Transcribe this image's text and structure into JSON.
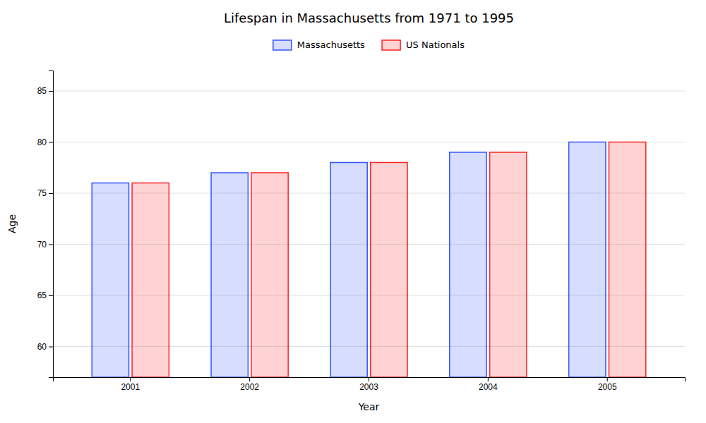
{
  "chart_data": {
    "type": "bar",
    "title": "Lifespan in Massachusetts from 1971 to 1995",
    "xlabel": "Year",
    "ylabel": "Age",
    "categories": [
      "2001",
      "2002",
      "2003",
      "2004",
      "2005"
    ],
    "series": [
      {
        "name": "Massachusetts",
        "color": "#3355ff",
        "values": [
          76,
          77,
          78,
          79,
          80
        ]
      },
      {
        "name": "US Nationals",
        "color": "#ff2222",
        "values": [
          76,
          77,
          78,
          79,
          80
        ]
      }
    ],
    "ylim": [
      57,
      87
    ],
    "yticks": [
      60,
      65,
      70,
      75,
      80,
      85
    ],
    "grid": true,
    "legend": "top"
  }
}
